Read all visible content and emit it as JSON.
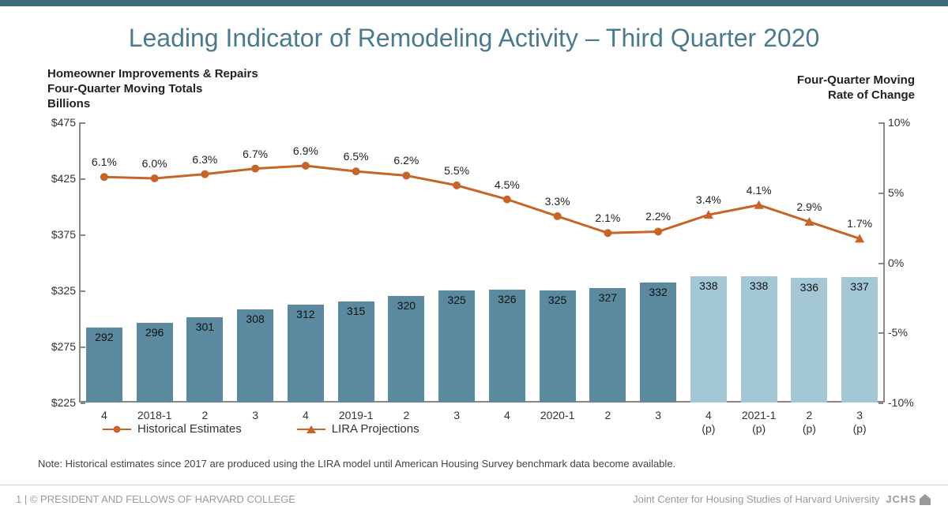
{
  "title": "Leading Indicator of Remodeling Activity – Third Quarter 2020",
  "left_axis": {
    "label_line1": "Homeowner Improvements & Repairs",
    "label_line2": "Four-Quarter Moving Totals",
    "label_line3": "Billions",
    "min": 225,
    "max": 475,
    "ticks": [
      225,
      275,
      325,
      375,
      425,
      475
    ],
    "prefix": "$"
  },
  "right_axis": {
    "label_line1": "Four-Quarter Moving",
    "label_line2": "Rate of Change",
    "min": -10,
    "max": 10,
    "ticks": [
      -10,
      -5,
      0,
      5,
      10
    ],
    "suffix": "%"
  },
  "colors": {
    "title": "#4a7a8c",
    "bar_hist": "#5b8a9e",
    "bar_proj": "#a4c7d6",
    "line": "#c56528",
    "axis": "#888888",
    "topbar": "#3e6a7a"
  },
  "categories": [
    {
      "label": "4",
      "value": 292,
      "pct": 6.1,
      "proj": false
    },
    {
      "label": "2018-1",
      "value": 296,
      "pct": 6.0,
      "proj": false
    },
    {
      "label": "2",
      "value": 301,
      "pct": 6.3,
      "proj": false
    },
    {
      "label": "3",
      "value": 308,
      "pct": 6.7,
      "proj": false
    },
    {
      "label": "4",
      "value": 312,
      "pct": 6.9,
      "proj": false
    },
    {
      "label": "2019-1",
      "value": 315,
      "pct": 6.5,
      "proj": false
    },
    {
      "label": "2",
      "value": 320,
      "pct": 6.2,
      "proj": false
    },
    {
      "label": "3",
      "value": 325,
      "pct": 5.5,
      "proj": false
    },
    {
      "label": "4",
      "value": 326,
      "pct": 4.5,
      "proj": false
    },
    {
      "label": "2020-1",
      "value": 325,
      "pct": 3.3,
      "proj": false
    },
    {
      "label": "2",
      "value": 327,
      "pct": 2.1,
      "proj": false
    },
    {
      "label": "3",
      "value": 332,
      "pct": 2.2,
      "proj": false
    },
    {
      "label": "4\n(p)",
      "value": 338,
      "pct": 3.4,
      "proj": true
    },
    {
      "label": "2021-1\n(p)",
      "value": 338,
      "pct": 4.1,
      "proj": true
    },
    {
      "label": "2\n(p)",
      "value": 336,
      "pct": 2.9,
      "proj": true
    },
    {
      "label": "3\n(p)",
      "value": 337,
      "pct": 1.7,
      "proj": true
    }
  ],
  "legend": {
    "hist": "Historical Estimates",
    "proj": "LIRA Projections"
  },
  "note": "Note: Historical estimates since 2017 are produced using the LIRA model until American Housing Survey benchmark data become available.",
  "footer": {
    "left_page": "1",
    "left": "© PRESIDENT AND FELLOWS OF HARVARD COLLEGE",
    "right": "Joint Center for Housing Studies of Harvard University",
    "logo": "JCHS"
  }
}
